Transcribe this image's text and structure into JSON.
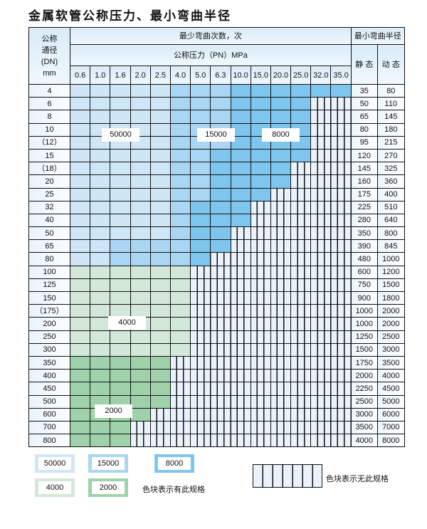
{
  "title": "金属软管公称压力、最小弯曲半径",
  "header": {
    "dn": [
      "公称",
      "通径",
      "(DN)",
      "mm"
    ],
    "cycles": "最少弯曲次数，次",
    "pressure": "公称压力（PN）MPa",
    "radius": "最小弯曲半径",
    "static": "静 态",
    "dynamic": "动 态",
    "pressures": [
      "0.6",
      "1.0",
      "1.6",
      "2.0",
      "2.5",
      "4.0",
      "5.0",
      "6.3",
      "10.0",
      "15.0",
      "20.0",
      "25.0",
      "32.0",
      "35.0"
    ]
  },
  "colors": {
    "A": "#cfe6f7",
    "B": "#a9d6f3",
    "C": "#7ec6ee",
    "D": "#d3e8d8",
    "E": "#9fd2ab",
    "X": "hatched"
  },
  "rows": [
    {
      "dn": "4",
      "cells": "AAAAABBBCCCCCC",
      "static": "35",
      "dynamic": "80"
    },
    {
      "dn": "6",
      "cells": "AAAAABBBCCCCXX",
      "static": "50",
      "dynamic": "110"
    },
    {
      "dn": "8",
      "cells": "AAAAABBBCCCCXX",
      "static": "65",
      "dynamic": "145"
    },
    {
      "dn": "10",
      "cells": "AAAAABBBCCCCXX",
      "static": "80",
      "dynamic": "180"
    },
    {
      "dn": "（12）",
      "cells": "AAAAABBBCCCCXX",
      "static": "95",
      "dynamic": "215"
    },
    {
      "dn": "15",
      "cells": "AAAAABBCCCCCXX",
      "static": "120",
      "dynamic": "270"
    },
    {
      "dn": "（18）",
      "cells": "AAAAABBCCCCXXX",
      "static": "145",
      "dynamic": "325"
    },
    {
      "dn": "20",
      "cells": "AAAAABBCCCCXXX",
      "static": "160",
      "dynamic": "360"
    },
    {
      "dn": "25",
      "cells": "AAAAABBCCCXXXX",
      "static": "175",
      "dynamic": "400"
    },
    {
      "dn": "32",
      "cells": "AAAAABCCCXXXXX",
      "static": "225",
      "dynamic": "510"
    },
    {
      "dn": "40",
      "cells": "AAAAABCCCXXXXX",
      "static": "280",
      "dynamic": "640"
    },
    {
      "dn": "50",
      "cells": "AAAAABCCXXXXXX",
      "static": "350",
      "dynamic": "800"
    },
    {
      "dn": "65",
      "cells": "AABBBBCCXXXXXX",
      "static": "390",
      "dynamic": "845"
    },
    {
      "dn": "80",
      "cells": "AABBBBCXXXXXXX",
      "static": "480",
      "dynamic": "1000"
    },
    {
      "dn": "100",
      "cells": "DDDDDDXXXXXXXX",
      "static": "600",
      "dynamic": "1200"
    },
    {
      "dn": "125",
      "cells": "DDDDDDXXXXXXXX",
      "static": "750",
      "dynamic": "1500"
    },
    {
      "dn": "150",
      "cells": "DDDDDDXXXXXXXX",
      "static": "900",
      "dynamic": "1800"
    },
    {
      "dn": "（175）",
      "cells": "DDDDDDXXXXXXXX",
      "static": "1000",
      "dynamic": "2000"
    },
    {
      "dn": "200",
      "cells": "DDDDDDXXXXXXXX",
      "static": "1000",
      "dynamic": "2000"
    },
    {
      "dn": "250",
      "cells": "DDDDDDXXXXXXXX",
      "static": "1250",
      "dynamic": "2500"
    },
    {
      "dn": "300",
      "cells": "DDDDDDXXXXXXXX",
      "static": "1500",
      "dynamic": "3000"
    },
    {
      "dn": "350",
      "cells": "EEEEEXXXXXXXXX",
      "static": "1750",
      "dynamic": "3500"
    },
    {
      "dn": "400",
      "cells": "EEEEEXXXXXXXXX",
      "static": "2000",
      "dynamic": "4000"
    },
    {
      "dn": "450",
      "cells": "EEEEEXXXXXXXXX",
      "static": "2250",
      "dynamic": "4500"
    },
    {
      "dn": "500",
      "cells": "EEEEEXXXXXXXXX",
      "static": "2500",
      "dynamic": "5000"
    },
    {
      "dn": "600",
      "cells": "EEEEXXXXXXXXXX",
      "static": "3000",
      "dynamic": "6000"
    },
    {
      "dn": "700",
      "cells": "EEEXXXXXXXXXXX",
      "static": "3500",
      "dynamic": "7000"
    },
    {
      "dn": "800",
      "cells": "EEEXXXXXXXXXXX",
      "static": "4000",
      "dynamic": "8000"
    }
  ],
  "zone_labels": {
    "a": "50000",
    "b": "15000",
    "c": "8000",
    "d": "4000",
    "e": "2000"
  },
  "legend": {
    "a": "50000",
    "b": "15000",
    "c": "8000",
    "d": "4000",
    "e": "2000",
    "has_spec": "色块表示有此规格",
    "no_spec": "色块表示无此规格"
  }
}
